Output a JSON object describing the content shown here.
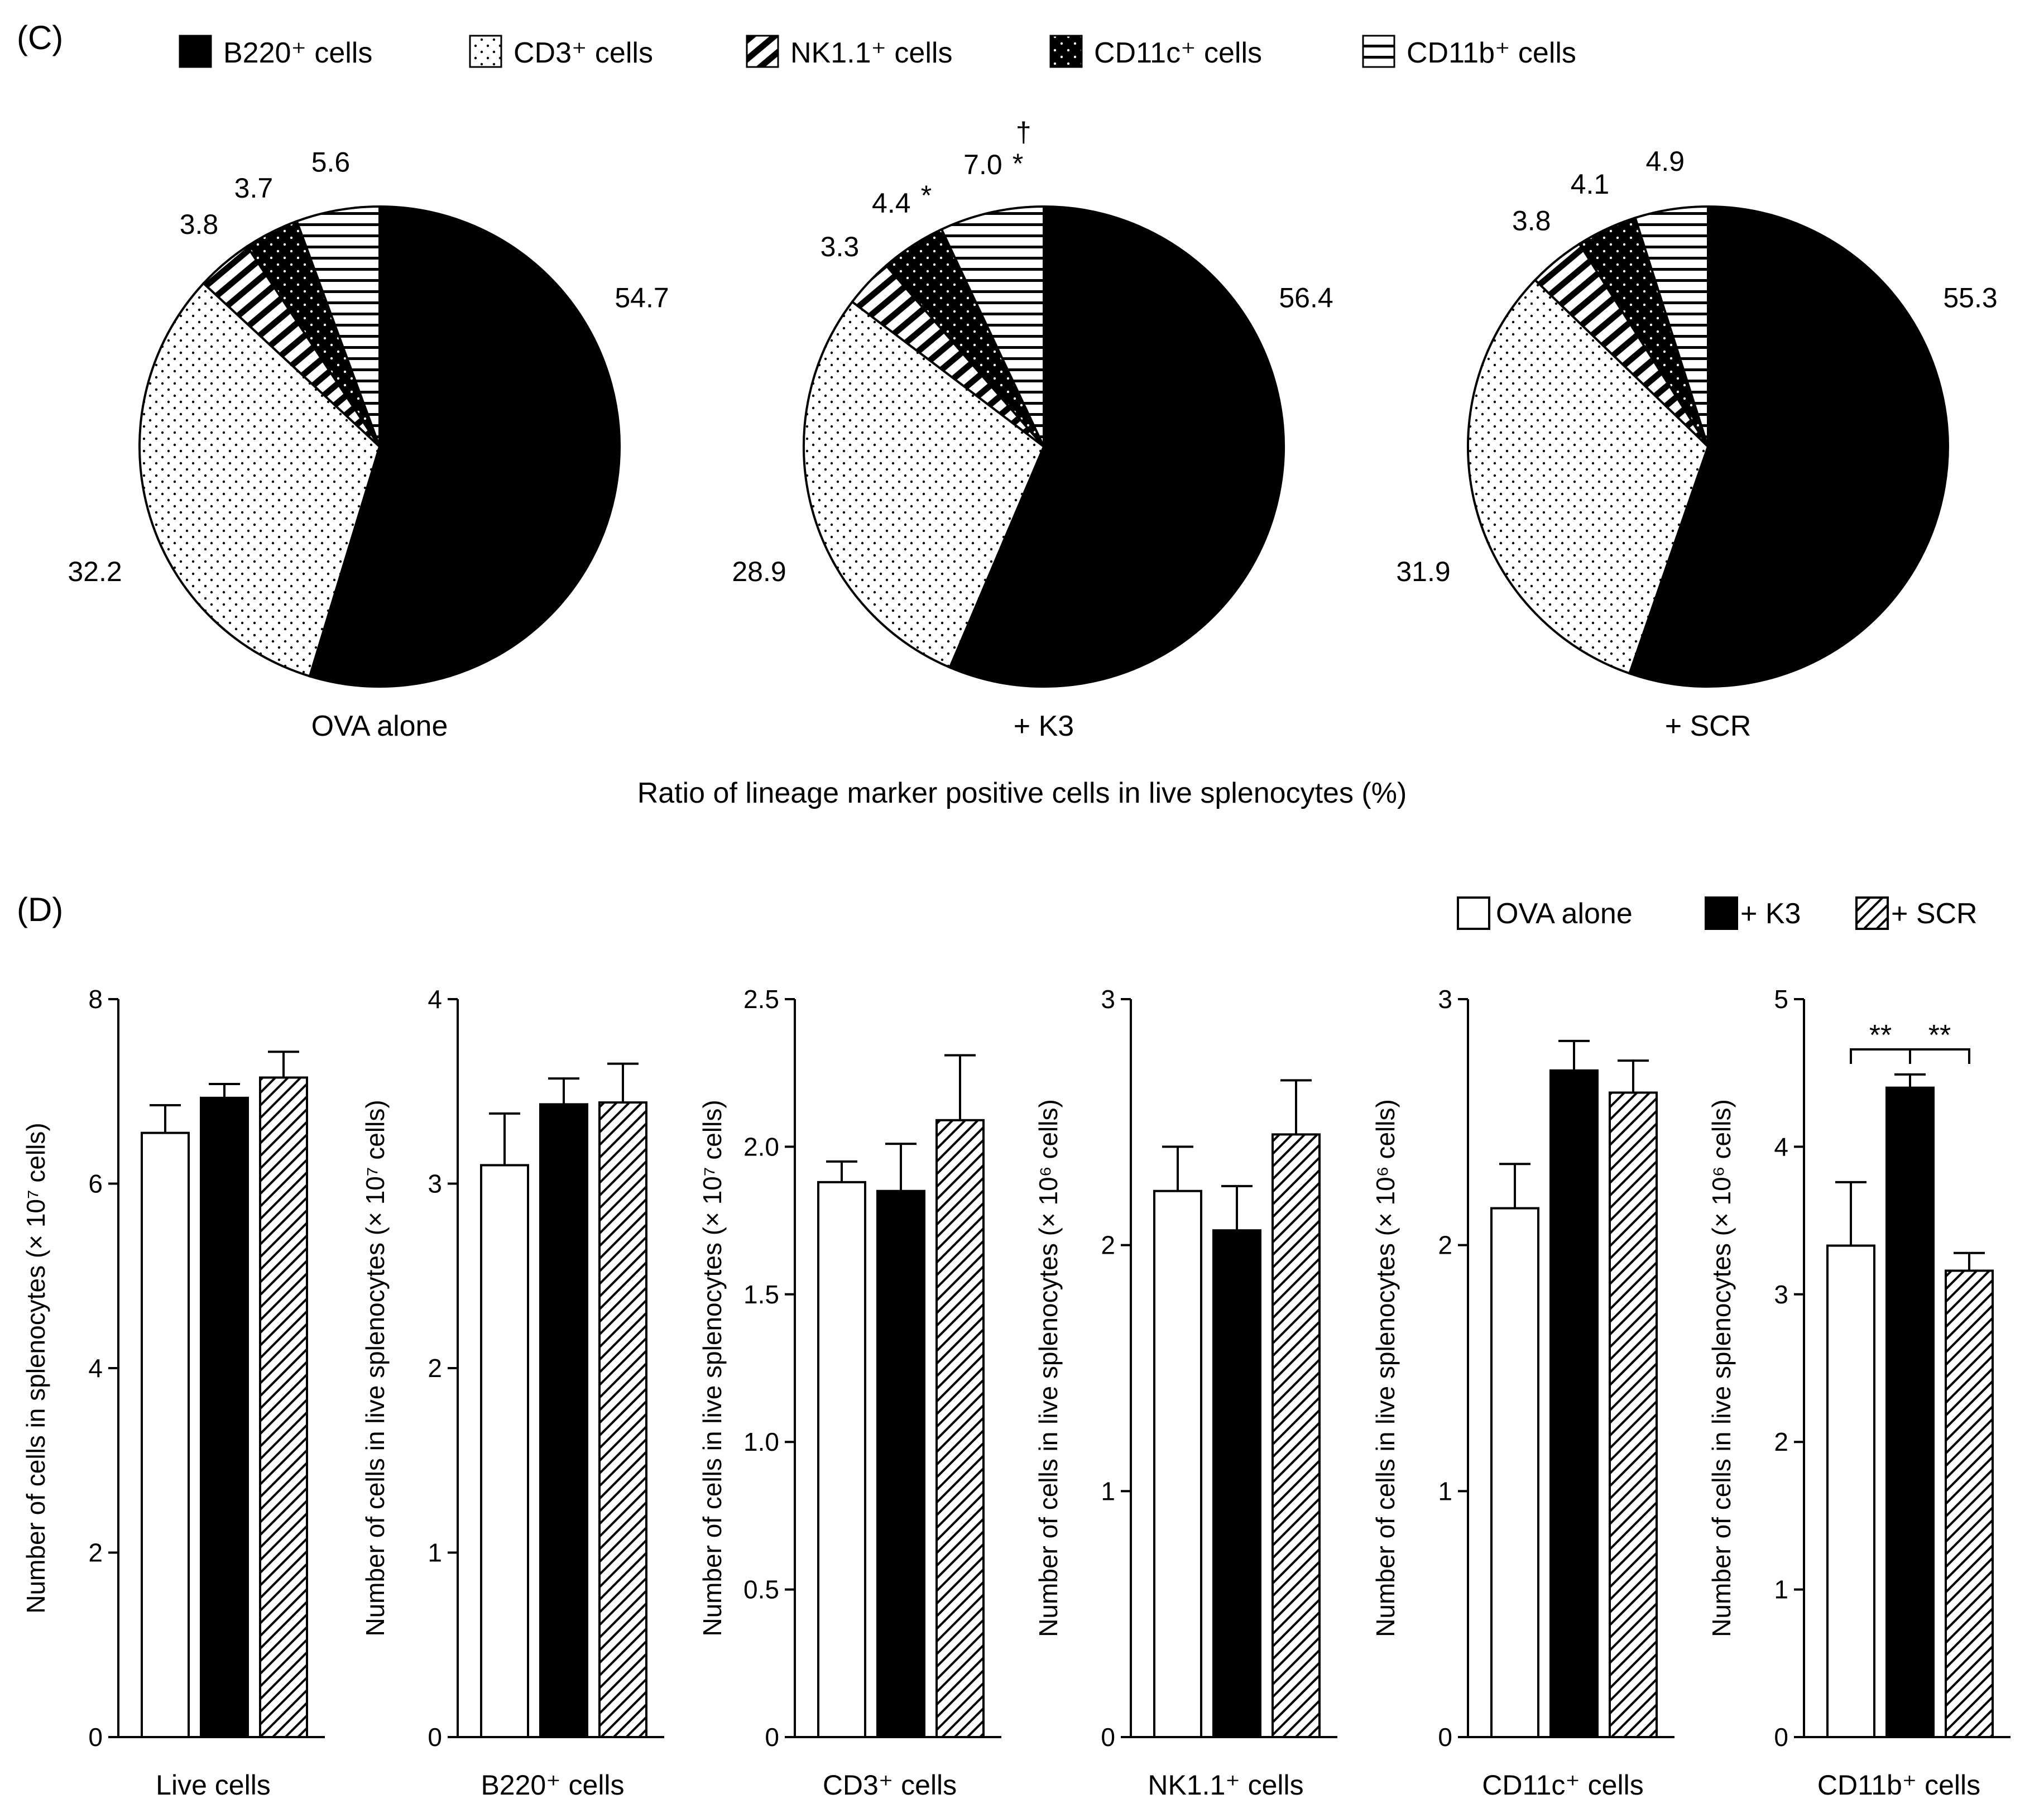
{
  "panel_c": {
    "label": "(C)",
    "caption": "Ratio of lineage marker positive cells in live splenocytes (%)"
  },
  "panel_d": {
    "label": "(D)"
  },
  "chart_data": [
    {
      "type": "pie",
      "panel": "C",
      "title": "OVA alone",
      "legend": [
        "B220⁺ cells",
        "CD3⁺ cells",
        "NK1.1⁺ cells",
        "CD11c⁺ cells",
        "CD11b⁺ cells"
      ],
      "patterns": [
        "solid-black",
        "dots",
        "diagonal-stripes",
        "black-dots",
        "horizontal-lines"
      ],
      "values": [
        54.7,
        32.2,
        3.8,
        3.7,
        5.6
      ],
      "labels": [
        "54.7",
        "32.2",
        "3.8",
        "3.7",
        "5.6"
      ],
      "annotations": [
        "",
        "",
        "",
        "",
        ""
      ]
    },
    {
      "type": "pie",
      "panel": "C",
      "title": "+ K3",
      "values": [
        56.4,
        28.9,
        3.3,
        4.4,
        7.0
      ],
      "labels": [
        "56.4",
        "28.9",
        "3.3",
        "4.4",
        "7.0"
      ],
      "annotations": [
        "",
        "",
        "",
        "*",
        "*"
      ],
      "annotation_extra": "†"
    },
    {
      "type": "pie",
      "panel": "C",
      "title": "+ SCR",
      "values": [
        55.3,
        31.9,
        3.8,
        4.1,
        4.9
      ],
      "labels": [
        "55.3",
        "31.9",
        "3.8",
        "4.1",
        "4.9"
      ],
      "annotations": [
        "",
        "",
        "",
        "",
        ""
      ]
    },
    {
      "type": "bar",
      "panel": "D",
      "legend": [
        "OVA alone",
        "+ K3",
        "+ SCR"
      ],
      "category": "Live cells",
      "ylabel": "Number of cells in splenocytes (× 10⁷ cells)",
      "ylim": [
        0,
        8
      ],
      "ticks": [
        "0",
        "2",
        "4",
        "6",
        "8"
      ],
      "values": [
        6.55,
        6.93,
        7.15
      ],
      "errors": [
        0.3,
        0.15,
        0.28
      ],
      "significance": ""
    },
    {
      "type": "bar",
      "panel": "D",
      "category": "B220⁺ cells",
      "ylabel": "Number of cells in live splenocytes (× 10⁷ cells)",
      "ylim": [
        0,
        4
      ],
      "ticks": [
        "0",
        "1",
        "2",
        "3",
        "4"
      ],
      "values": [
        3.1,
        3.43,
        3.44
      ],
      "errors": [
        0.28,
        0.14,
        0.21
      ],
      "significance": ""
    },
    {
      "type": "bar",
      "panel": "D",
      "category": "CD3⁺ cells",
      "ylabel": "Number of cells in live splenocytes (× 10⁷ cells)",
      "ylim": [
        0,
        2.5
      ],
      "ticks": [
        "0",
        "0.5",
        "1.0",
        "1.5",
        "2.0",
        "2.5"
      ],
      "values": [
        1.88,
        1.85,
        2.09
      ],
      "errors": [
        0.07,
        0.16,
        0.22
      ],
      "significance": ""
    },
    {
      "type": "bar",
      "panel": "D",
      "category": "NK1.1⁺ cells",
      "ylabel": "Number of cells in live splenocytes (× 10⁶ cells)",
      "ylim": [
        0,
        3
      ],
      "ticks": [
        "0",
        "1",
        "2",
        "3"
      ],
      "values": [
        2.22,
        2.06,
        2.45
      ],
      "errors": [
        0.18,
        0.18,
        0.22
      ],
      "significance": ""
    },
    {
      "type": "bar",
      "panel": "D",
      "category": "CD11c⁺ cells",
      "ylabel": "Number of cells in live splenocytes (× 10⁶ cells)",
      "ylim": [
        0,
        3
      ],
      "ticks": [
        "0",
        "1",
        "2",
        "3"
      ],
      "values": [
        2.15,
        2.71,
        2.62
      ],
      "errors": [
        0.18,
        0.12,
        0.13
      ],
      "significance": ""
    },
    {
      "type": "bar",
      "panel": "D",
      "category": "CD11b⁺ cells",
      "ylabel": "Number of cells in live splenocytes (× 10⁶ cells)",
      "ylim": [
        0,
        5
      ],
      "ticks": [
        "0",
        "1",
        "2",
        "3",
        "4",
        "5"
      ],
      "values": [
        3.33,
        4.4,
        3.16
      ],
      "errors": [
        0.43,
        0.09,
        0.12
      ],
      "significance": "**"
    }
  ]
}
